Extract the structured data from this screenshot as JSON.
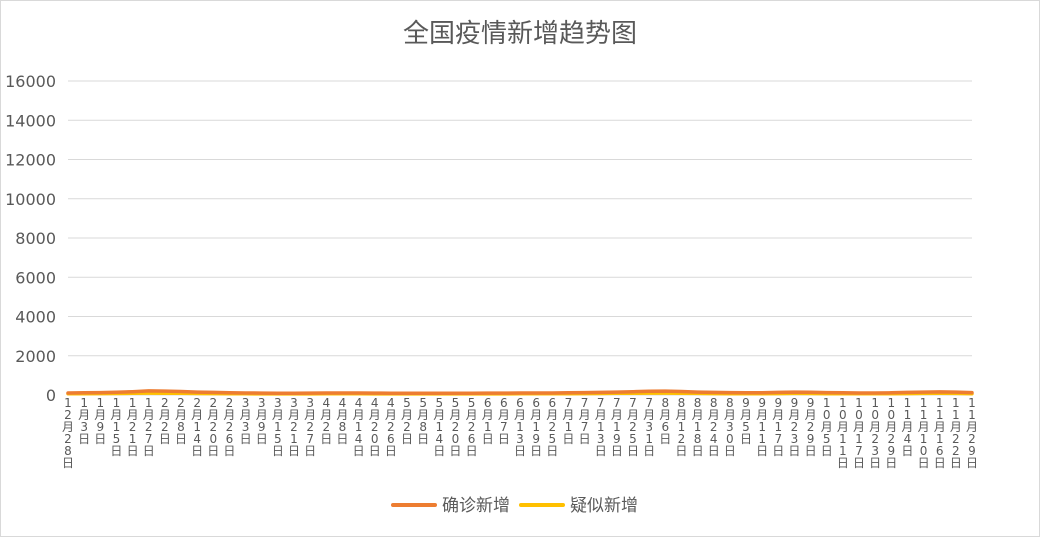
{
  "chart_data": {
    "type": "line",
    "title": "全国疫情新增趋势图",
    "ylim": [
      0,
      16000
    ],
    "yticks": [
      0,
      2000,
      4000,
      6000,
      8000,
      10000,
      12000,
      14000,
      16000
    ],
    "x_labels": [
      "12月28日",
      "1月3日",
      "1月9日",
      "1月15日",
      "1月21日",
      "1月27日",
      "2月2日",
      "2月8日",
      "2月14日",
      "2月20日",
      "2月26日",
      "3月3日",
      "3月9日",
      "3月15日",
      "3月21日",
      "3月27日",
      "4月2日",
      "4月8日",
      "4月14日",
      "4月20日",
      "4月26日",
      "5月2日",
      "5月8日",
      "5月14日",
      "5月20日",
      "5月26日",
      "6月1日",
      "6月7日",
      "6月13日",
      "6月19日",
      "6月25日",
      "7月1日",
      "7月7日",
      "7月13日",
      "7月19日",
      "7月25日",
      "7月31日",
      "8月6日",
      "8月12日",
      "8月18日",
      "8月24日",
      "8月30日",
      "9月5日",
      "9月11日",
      "9月17日",
      "9月23日",
      "9月29日",
      "10月5日",
      "10月11日",
      "10月17日",
      "10月23日",
      "10月29日",
      "11月4日",
      "11月10日",
      "11月16日",
      "11月22日",
      "11月29日"
    ],
    "series": [
      {
        "name": "确诊新增",
        "color": "#ED7D31",
        "values": [
          100,
          110,
          120,
          140,
          170,
          210,
          200,
          180,
          150,
          130,
          110,
          100,
          95,
          90,
          90,
          95,
          100,
          100,
          100,
          95,
          90,
          90,
          90,
          90,
          90,
          90,
          95,
          95,
          100,
          100,
          100,
          110,
          120,
          130,
          150,
          170,
          190,
          200,
          180,
          150,
          130,
          120,
          110,
          110,
          130,
          150,
          140,
          120,
          110,
          100,
          100,
          110,
          130,
          150,
          160,
          150,
          120
        ]
      },
      {
        "name": "疑似新增",
        "color": "#FFC000",
        "values": [
          60,
          65,
          70,
          75,
          85,
          95,
          90,
          85,
          75,
          70,
          65,
          60,
          58,
          55,
          55,
          58,
          60,
          60,
          60,
          58,
          55,
          55,
          55,
          55,
          55,
          55,
          58,
          58,
          60,
          60,
          60,
          65,
          70,
          75,
          85,
          90,
          95,
          95,
          90,
          80,
          70,
          65,
          62,
          62,
          70,
          80,
          75,
          68,
          62,
          60,
          60,
          62,
          70,
          80,
          85,
          80,
          65
        ]
      }
    ],
    "legend": "bottom",
    "grid": true
  }
}
